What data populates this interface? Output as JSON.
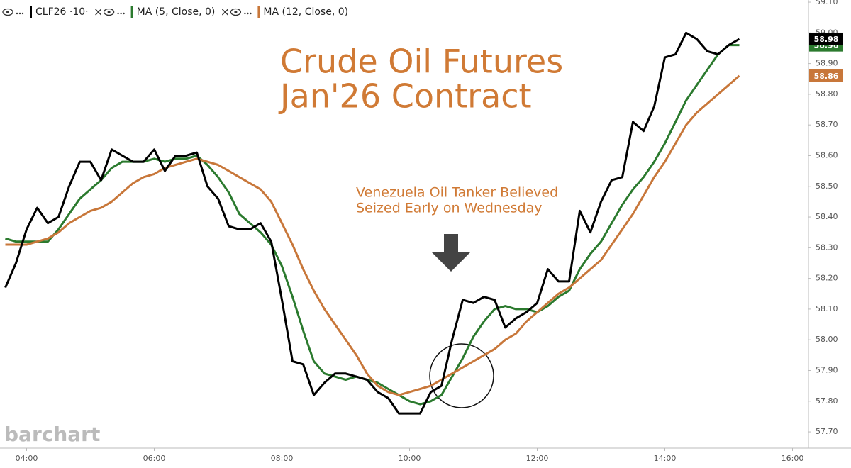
{
  "chart_data": {
    "type": "line",
    "title": [
      "Crude Oil Futures",
      "Jan'26 Contract"
    ],
    "annotation": [
      "Venezuela Oil Tanker Believed",
      "Seized Early on Wednesday"
    ],
    "watermark": "barchart",
    "x": [
      220,
      230,
      240,
      250,
      260,
      270,
      280,
      290,
      300,
      310,
      320,
      330,
      340,
      350,
      360,
      370,
      380,
      390,
      400,
      410,
      420,
      430,
      440,
      450,
      460,
      470,
      480,
      490,
      500,
      510,
      520,
      530,
      540,
      550,
      560,
      570,
      580,
      590,
      600,
      610,
      620,
      630,
      640,
      650,
      660,
      670,
      680,
      690,
      700,
      710,
      720,
      730,
      740,
      750,
      760,
      770,
      780,
      790,
      800,
      810,
      820,
      830,
      840,
      850,
      860,
      870,
      880,
      890,
      900,
      910
    ],
    "xlim": [
      215,
      975
    ],
    "xticks": [
      {
        "value": 240,
        "label": "04:00"
      },
      {
        "value": 360,
        "label": "06:00"
      },
      {
        "value": 480,
        "label": "08:00"
      },
      {
        "value": 600,
        "label": "10:00"
      },
      {
        "value": 720,
        "label": "12:00"
      },
      {
        "value": 840,
        "label": "14:00"
      },
      {
        "value": 960,
        "label": "16:00"
      }
    ],
    "ylim": [
      57.647,
      59.107
    ],
    "yticks": [
      {
        "value": 57.7,
        "label": "57.70"
      },
      {
        "value": 57.8,
        "label": "57.80"
      },
      {
        "value": 57.9,
        "label": "57.90"
      },
      {
        "value": 58.0,
        "label": "58.00"
      },
      {
        "value": 58.1,
        "label": "58.10"
      },
      {
        "value": 58.2,
        "label": "58.20"
      },
      {
        "value": 58.3,
        "label": "58.30"
      },
      {
        "value": 58.4,
        "label": "58.40"
      },
      {
        "value": 58.5,
        "label": "58.50"
      },
      {
        "value": 58.6,
        "label": "58.60"
      },
      {
        "value": 58.7,
        "label": "58.70"
      },
      {
        "value": 58.8,
        "label": "58.80"
      },
      {
        "value": 58.9,
        "label": "58.90"
      },
      {
        "value": 59.0,
        "label": "59.00"
      },
      {
        "value": 59.1,
        "label": "59.10"
      }
    ],
    "series": [
      {
        "name": "MA (5, Close, 0)",
        "color": "#2b7a2e",
        "values": [
          58.33,
          58.32,
          58.32,
          58.32,
          58.32,
          58.36,
          58.41,
          58.46,
          58.49,
          58.52,
          58.56,
          58.58,
          58.58,
          58.58,
          58.59,
          58.58,
          58.59,
          58.59,
          58.6,
          58.57,
          58.53,
          58.48,
          58.41,
          58.38,
          58.35,
          58.31,
          58.24,
          58.14,
          58.03,
          57.93,
          57.89,
          57.88,
          57.87,
          57.88,
          57.87,
          57.86,
          57.84,
          57.82,
          57.8,
          57.79,
          57.8,
          57.82,
          57.88,
          57.94,
          58.01,
          58.06,
          58.1,
          58.11,
          58.1,
          58.1,
          58.09,
          58.11,
          58.14,
          58.16,
          58.23,
          58.28,
          58.32,
          58.38,
          58.44,
          58.49,
          58.53,
          58.58,
          58.64,
          58.71,
          58.78,
          58.83,
          58.88,
          58.93,
          58.96,
          58.96
        ]
      },
      {
        "name": "MA (12, Close, 0)",
        "color": "#c8773a",
        "values": [
          58.31,
          58.31,
          58.31,
          58.32,
          58.33,
          58.35,
          58.38,
          58.4,
          58.42,
          58.43,
          58.45,
          58.48,
          58.51,
          58.53,
          58.54,
          58.56,
          58.57,
          58.58,
          58.59,
          58.58,
          58.57,
          58.55,
          58.53,
          58.51,
          58.49,
          58.45,
          58.38,
          58.31,
          58.23,
          58.16,
          58.1,
          58.05,
          58.0,
          57.95,
          57.89,
          57.85,
          57.83,
          57.82,
          57.83,
          57.84,
          57.85,
          57.87,
          57.89,
          57.91,
          57.93,
          57.95,
          57.97,
          58.0,
          58.02,
          58.06,
          58.09,
          58.12,
          58.15,
          58.17,
          58.2,
          58.23,
          58.26,
          58.31,
          58.36,
          58.41,
          58.47,
          58.53,
          58.58,
          58.64,
          58.7,
          58.74,
          58.77,
          58.8,
          58.83,
          58.86
        ]
      },
      {
        "name": "CLF26 ·10·",
        "color": "#000000",
        "values": [
          58.17,
          58.25,
          58.36,
          58.43,
          58.38,
          58.4,
          58.5,
          58.58,
          58.58,
          58.52,
          58.62,
          58.6,
          58.58,
          58.58,
          58.62,
          58.55,
          58.6,
          58.6,
          58.61,
          58.5,
          58.46,
          58.37,
          58.36,
          58.36,
          58.38,
          58.32,
          58.13,
          57.93,
          57.92,
          57.82,
          57.86,
          57.89,
          57.89,
          57.88,
          57.87,
          57.83,
          57.81,
          57.76,
          57.76,
          57.76,
          57.83,
          57.85,
          58.0,
          58.13,
          58.12,
          58.14,
          58.13,
          58.04,
          58.07,
          58.09,
          58.12,
          58.23,
          58.19,
          58.19,
          58.42,
          58.35,
          58.45,
          58.52,
          58.53,
          58.71,
          58.68,
          58.76,
          58.92,
          58.93,
          59.0,
          58.98,
          58.94,
          58.93,
          58.96,
          58.98
        ]
      }
    ]
  }
}
